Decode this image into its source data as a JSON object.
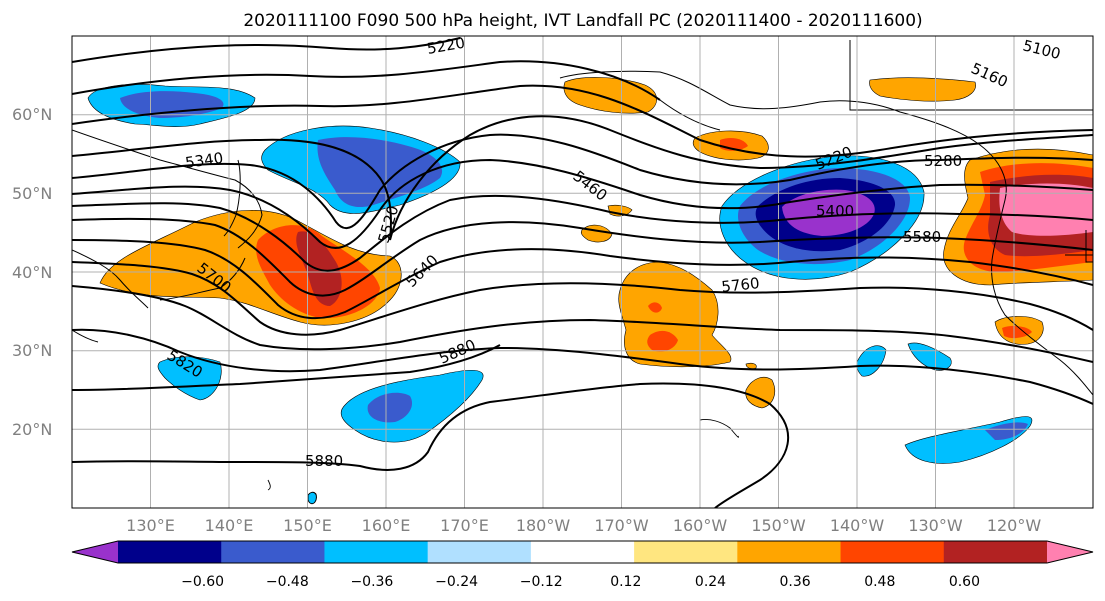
{
  "chart_data": {
    "type": "heatmap",
    "title": "2020111100 F090 500 hPa height, IVT Landfall PC (2020111400 - 2020111600)",
    "projection": "PlateCarree",
    "lon_range": [
      120,
      250
    ],
    "lat_range": [
      10,
      70
    ],
    "grid": true,
    "x_ticks": [
      "130°E",
      "140°E",
      "150°E",
      "160°E",
      "170°E",
      "180°W",
      "170°W",
      "160°W",
      "150°W",
      "140°W",
      "130°W",
      "120°W"
    ],
    "y_ticks": [
      "20°N",
      "30°N",
      "40°N",
      "50°N",
      "60°N"
    ],
    "colorbar": {
      "orientation": "horizontal",
      "extend": "both",
      "levels": [
        -0.72,
        -0.6,
        -0.48,
        -0.36,
        -0.24,
        -0.12,
        0.12,
        0.24,
        0.36,
        0.48,
        0.6,
        0.72
      ],
      "tick_labels": [
        "−0.60",
        "−0.48",
        "−0.36",
        "−0.24",
        "−0.12",
        "0.12",
        "0.24",
        "0.36",
        "0.48",
        "0.60"
      ],
      "colors": [
        "#9932cc",
        "#00008b",
        "#3a5bcd",
        "#00bfff",
        "#b0e0ff",
        "#ffffff",
        "#ffe680",
        "#ffa500",
        "#ff4500",
        "#b22222",
        "#ff80b0"
      ]
    },
    "height_contour_labels": [
      "5220",
      "5100",
      "5160",
      "5340",
      "5460",
      "5520",
      "5640",
      "5700",
      "5820",
      "5880",
      "5760",
      "5580",
      "5400",
      "5220",
      "5280",
      "5880"
    ],
    "anomaly_regions": [
      {
        "lon": 155,
        "lat": 40,
        "value": 0.5
      },
      {
        "lon": 245,
        "lat": 48,
        "value": 0.62
      },
      {
        "lon": 223,
        "lat": 48,
        "value": -0.65
      },
      {
        "lon": 159,
        "lat": 53,
        "value": -0.4
      },
      {
        "lon": 132,
        "lat": 62,
        "value": -0.36
      },
      {
        "lon": 170,
        "lat": 23,
        "value": -0.3
      },
      {
        "lon": 196,
        "lat": 34,
        "value": 0.3
      },
      {
        "lon": 192,
        "lat": 61,
        "value": 0.28
      },
      {
        "lon": 204,
        "lat": 52,
        "value": 0.3
      },
      {
        "lon": 234,
        "lat": 21,
        "value": -0.3
      },
      {
        "lon": 249,
        "lat": 33,
        "value": 0.33
      }
    ]
  }
}
